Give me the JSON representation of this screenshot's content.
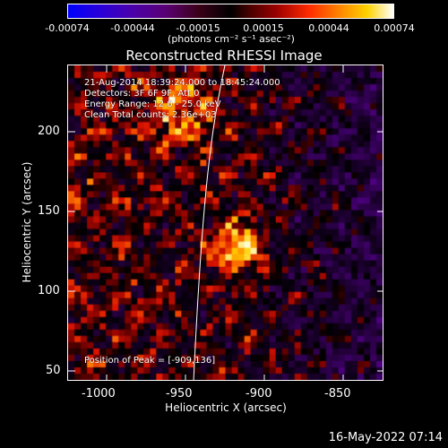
{
  "colorbar": {
    "tick_labels": [
      "-0.00074",
      "-0.00044",
      "-0.00015",
      "0.00015",
      "0.00044",
      "0.00074"
    ],
    "unit": "(photons cm⁻² s⁻¹ asec⁻²)"
  },
  "title": "Reconstructed RHESSI Image",
  "info": {
    "line1": "21-Aug-2014 18:39:24.000 to 18:45:24.000",
    "line2": "Detectors: 3F 6F 9F, Att 0",
    "line3": "Energy Range: 12.0 - 25.0 keV",
    "line4": "Clean     Total counts: 2.36e+03",
    "peak": "Position of Peak = [-909,136]"
  },
  "axes": {
    "xlabel": "Heliocentric X (arcsec)",
    "ylabel": "Heliocentric Y (arcsec)",
    "xticks": [
      "-1000",
      "-950",
      "-900",
      "-850"
    ],
    "yticks": [
      "200",
      "150",
      "100",
      "50"
    ]
  },
  "timestamp": "16-May-2022 07:14"
}
